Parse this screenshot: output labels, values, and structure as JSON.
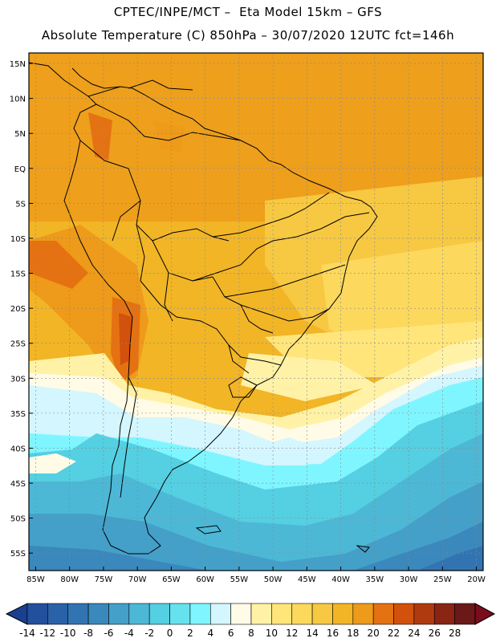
{
  "header": {
    "line1": "CPTEC/INPE/MCT –  Eta Model 15km – GFS",
    "line2": "Absolute Temperature (C) 850hPa – 30/07/2020 12UTC fct=146h"
  },
  "map": {
    "lat_labels": [
      "15N",
      "10N",
      "5N",
      "EQ",
      "5S",
      "10S",
      "15S",
      "20S",
      "25S",
      "30S",
      "35S",
      "40S",
      "45S",
      "50S",
      "55S"
    ],
    "lon_labels": [
      "85W",
      "80W",
      "75W",
      "70W",
      "65W",
      "60W",
      "55W",
      "50W",
      "45W",
      "40W",
      "35W",
      "30W",
      "25W",
      "20W"
    ],
    "extent": {
      "lon": [
        -86,
        -19
      ],
      "lat": [
        16.5,
        -57.5
      ]
    }
  },
  "colorbar": {
    "labels": [
      "-14",
      "-12",
      "-10",
      "-8",
      "-6",
      "-4",
      "-2",
      "0",
      "2",
      "4",
      "6",
      "8",
      "10",
      "12",
      "14",
      "16",
      "18",
      "20",
      "22",
      "24",
      "26",
      "28"
    ],
    "colors": [
      "#1a3f8f",
      "#22509c",
      "#2a62a8",
      "#3274b2",
      "#3a88bc",
      "#44a0c8",
      "#4db8d6",
      "#55cfe2",
      "#66e2ee",
      "#7ff6ff",
      "#d4f6ff",
      "#fffbe6",
      "#fff2a6",
      "#ffe57a",
      "#fcd85c",
      "#f7c842",
      "#f2b526",
      "#ee9a1a",
      "#e57212",
      "#d2510c",
      "#b03a10",
      "#8a2414",
      "#6b1818",
      "#7a0c1c"
    ]
  }
}
